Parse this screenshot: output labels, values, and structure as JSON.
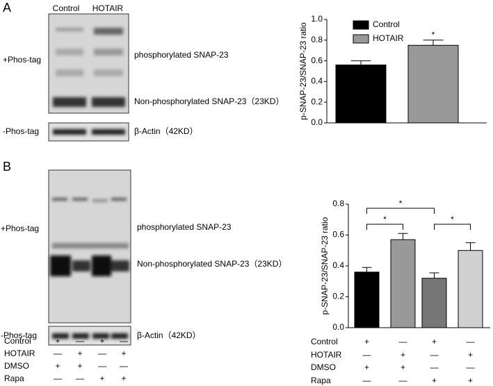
{
  "panel_labels": [
    "A",
    "B"
  ],
  "blots": [
    {
      "lanes": [
        "Control",
        "HOTAIR"
      ],
      "left_labels": [
        "+Phos-tag",
        "-Phos-tag"
      ],
      "right_labels": [
        "phosphorylated SNAP-23",
        "Non-phosphorylated SNAP-23（23KD）",
        "β-Actin（42KD）"
      ]
    },
    {
      "left_labels": [
        "+Phos-tag",
        "-Phos-tag"
      ],
      "right_labels": [
        "phosphorylated SNAP-23",
        "Non-phosphorylated SNAP-23（23KD）",
        "β-Actin（42KD）"
      ],
      "conditions": {
        "rows": [
          "Control",
          "HOTAIR",
          "DMSO",
          "Rapa"
        ],
        "signs": [
          [
            "+",
            "—",
            "+",
            "—"
          ],
          [
            "—",
            "+",
            "—",
            "+"
          ],
          [
            "+",
            "+",
            "—",
            "—"
          ],
          [
            "—",
            "—",
            "+",
            "+"
          ]
        ]
      }
    }
  ],
  "chart_data": [
    {
      "type": "bar",
      "ylabel": "p-SNAP-23/SNAP-23 ratio",
      "series": [
        {
          "name": "Control",
          "color": "#000000",
          "values": [
            0.56
          ],
          "errors": [
            0.04
          ]
        },
        {
          "name": "HOTAIR",
          "color": "#999999",
          "values": [
            0.75
          ],
          "errors": [
            0.05
          ]
        }
      ],
      "ylim": [
        0,
        1
      ],
      "yticks": [
        {
          "value": 0,
          "label": "0.0"
        },
        0.2,
        0.4,
        0.6,
        0.8,
        {
          "value": 1,
          "label": "1.0"
        }
      ],
      "legend": "top-left",
      "annotations": [
        {
          "text": "*",
          "series": 1
        }
      ]
    },
    {
      "type": "bar",
      "ylabel": "p-SNAP-23/SNAP-23 ratio",
      "categories": [
        null,
        null,
        null,
        null
      ],
      "values": [
        0.36,
        0.57,
        0.32,
        0.5
      ],
      "errors": [
        0.03,
        0.04,
        0.035,
        0.05
      ],
      "colors": [
        "#000000",
        "#999999",
        "#777777",
        "#d0d0d0"
      ],
      "ylim": [
        0,
        0.8
      ],
      "yticks": [
        {
          "value": 0,
          "label": "0.0"
        },
        0.2,
        0.4,
        0.6,
        0.8
      ],
      "brackets": [
        {
          "from": 0,
          "to": 1,
          "text": "*"
        },
        {
          "from": 0,
          "to": 2,
          "text": "*"
        },
        {
          "from": 2,
          "to": 3,
          "text": "*"
        }
      ],
      "conditions": {
        "rows": [
          "Control",
          "HOTAIR",
          "DMSO",
          "Rapa"
        ],
        "signs": [
          [
            "+",
            "—",
            "+",
            "—"
          ],
          [
            "—",
            "+",
            "—",
            "+"
          ],
          [
            "+",
            "+",
            "—",
            "—"
          ],
          [
            "—",
            "—",
            "+",
            "+"
          ]
        ]
      }
    }
  ]
}
